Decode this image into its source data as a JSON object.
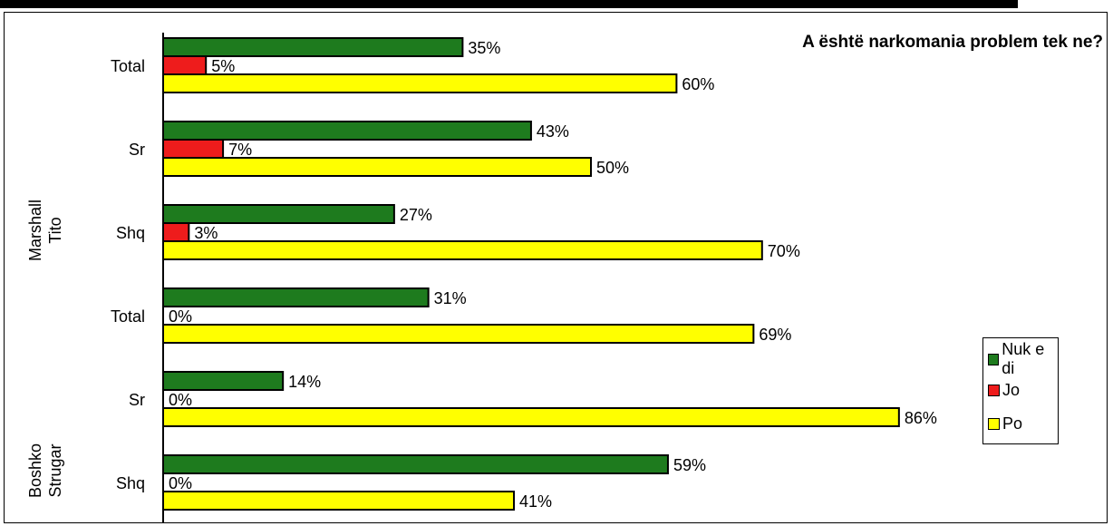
{
  "chart_data": {
    "type": "bar",
    "orientation": "horizontal",
    "title": "A është narkomania problem tek ne?",
    "groups": [
      {
        "name": "Marshall Tito",
        "categories": [
          "Total",
          "Sr",
          "Shq"
        ]
      },
      {
        "name": "Boshko Strugar",
        "categories": [
          "Total",
          "Sr",
          "Shq"
        ]
      }
    ],
    "categories": [
      "Total",
      "Sr",
      "Shq",
      "Total",
      "Sr",
      "Shq"
    ],
    "series": [
      {
        "name": "Nuk e di",
        "color": "#1e7b1e",
        "values": [
          35,
          43,
          27,
          31,
          14,
          59
        ]
      },
      {
        "name": "Jo",
        "color": "#ee1c1c",
        "values": [
          5,
          7,
          3,
          0,
          0,
          0
        ]
      },
      {
        "name": "Po",
        "color": "#ffff00",
        "values": [
          60,
          50,
          70,
          69,
          86,
          41
        ]
      }
    ],
    "value_suffix": "%",
    "legend_position": "right",
    "grid": false
  }
}
